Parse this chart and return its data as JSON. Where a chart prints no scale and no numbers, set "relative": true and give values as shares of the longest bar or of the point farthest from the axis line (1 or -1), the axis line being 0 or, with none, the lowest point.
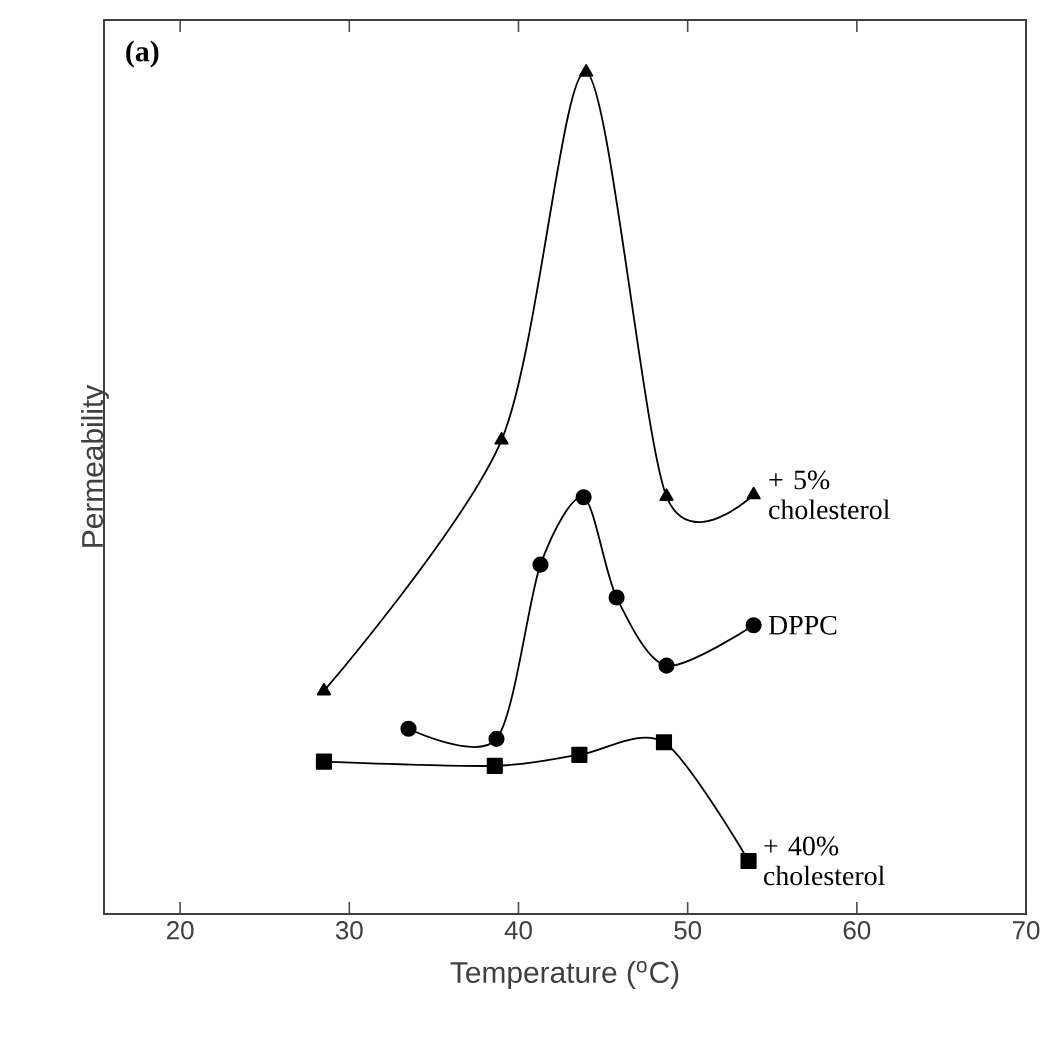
{
  "chart_data": {
    "type": "line",
    "relative": true,
    "xlabel": "Temperature ($^{o}$C)",
    "ylabel": "Permeability",
    "annotations": [
      "(a)"
    ],
    "xlim": [
      15.5,
      70
    ],
    "xticks": [
      20,
      30,
      40,
      50,
      60,
      70
    ],
    "grid": false,
    "legend": false,
    "line_style": "solid",
    "series": [
      {
        "name": "+ 5% cholesterol",
        "color": "#000000",
        "marker": "triangle",
        "x": [
          28.5,
          39.0,
          44.0,
          48.75,
          53.9
        ],
        "values": [
          0.265,
          0.563,
          1,
          0.496,
          0.498
        ]
      },
      {
        "name": "DPPC",
        "color": "#000000",
        "marker": "circle",
        "x": [
          33.5,
          38.7,
          41.3,
          43.85,
          45.8,
          48.75,
          53.9
        ],
        "values": [
          0.22,
          0.208,
          0.415,
          0.495,
          0.376,
          0.295,
          0.343
        ]
      },
      {
        "name": "+ 40% cholesterol",
        "color": "#000000",
        "marker": "square",
        "x": [
          28.5,
          38.6,
          43.6,
          48.6,
          53.6
        ],
        "values": [
          0.181,
          0.176,
          0.189,
          0.204,
          0.063
        ]
      }
    ]
  }
}
